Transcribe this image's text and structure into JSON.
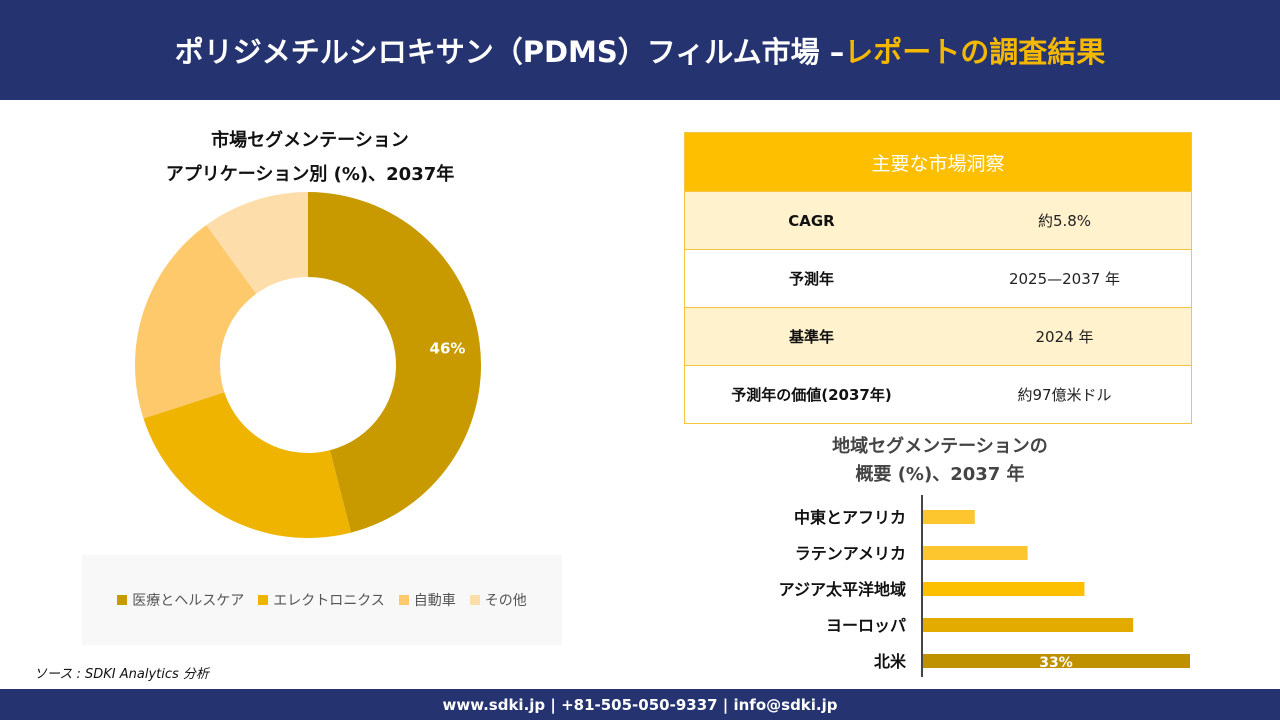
{
  "header": {
    "title_main": "ポリジメチルシロキサン（PDMS）フィルム市場 –",
    "title_accent": "レポートの調査結果"
  },
  "footer": {
    "contact": "www.sdki.jp | +81-505-050-9337 | info@sdki.jp"
  },
  "source": "ソース : SDKI Analytics 分析",
  "insights": {
    "title": "主要な市場洞察",
    "rows": [
      {
        "key": "CAGR",
        "value": "約5.8%"
      },
      {
        "key": "予測年",
        "value": "2025—2037 年"
      },
      {
        "key": "基準年",
        "value": "2024 年"
      },
      {
        "key": "予測年の価値(2037年)",
        "value": "約97億米ドル"
      }
    ]
  },
  "chart_data": [
    {
      "type": "pie",
      "subtype": "donut",
      "title_line1": "市場セグメンテーション",
      "title_line2": "アプリケーション別 (%)、2037年",
      "categories": [
        "医療とヘルスケア",
        "エレクトロニクス",
        "自動車",
        "その他"
      ],
      "values": [
        46,
        24,
        20,
        10
      ],
      "data_labels": [
        "46%",
        "",
        "",
        ""
      ],
      "colors": [
        "#c89a00",
        "#efb400",
        "#fdc96a",
        "#fddeaa"
      ],
      "legend": "bottom"
    },
    {
      "type": "bar",
      "orientation": "horizontal",
      "title_line1": "地域セグメンテーションの",
      "title_line2": "概要 (%)、2037 年",
      "categories": [
        "中東とアフリカ",
        "ラテンアメリカ",
        "アジア太平洋地域",
        "ヨーロッパ",
        "北米"
      ],
      "values": [
        6.5,
        13,
        20,
        26,
        33
      ],
      "data_labels": [
        "",
        "",
        "",
        "",
        "33%"
      ],
      "colors": [
        "#fdc52e",
        "#fdc52e",
        "#fdc000",
        "#e3aa00",
        "#bf9000"
      ]
    }
  ]
}
